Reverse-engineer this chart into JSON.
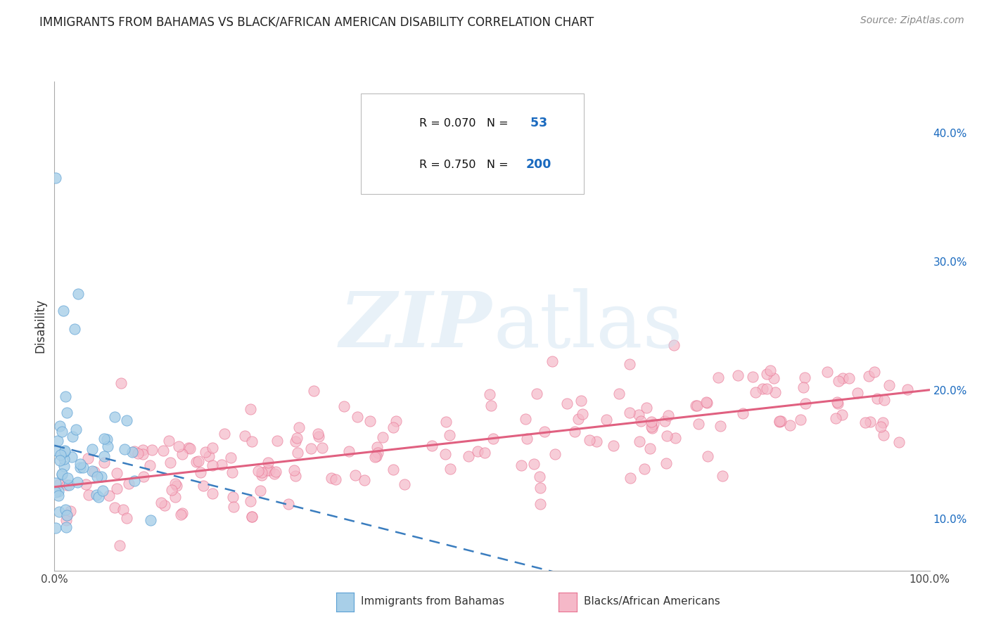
{
  "title": "IMMIGRANTS FROM BAHAMAS VS BLACK/AFRICAN AMERICAN DISABILITY CORRELATION CHART",
  "source": "Source: ZipAtlas.com",
  "ylabel": "Disability",
  "x_min": 0.0,
  "x_max": 1.0,
  "y_min": 0.06,
  "y_max": 0.44,
  "y_tick_labels_right": [
    "10.0%",
    "20.0%",
    "30.0%",
    "40.0%"
  ],
  "y_tick_vals_right": [
    0.1,
    0.2,
    0.3,
    0.4
  ],
  "legend_label1": "Immigrants from Bahamas",
  "legend_label2": "Blacks/African Americans",
  "color_blue_fill": "#a8cfe8",
  "color_blue_edge": "#5a9fd4",
  "color_blue_line": "#3a7dbf",
  "color_pink_fill": "#f5b8c8",
  "color_pink_edge": "#e87090",
  "color_pink_line": "#e06080",
  "color_text_blue": "#1a6abf",
  "background_color": "#ffffff",
  "grid_color": "#cccccc",
  "N_bahamas": 53,
  "N_blacks": 200
}
